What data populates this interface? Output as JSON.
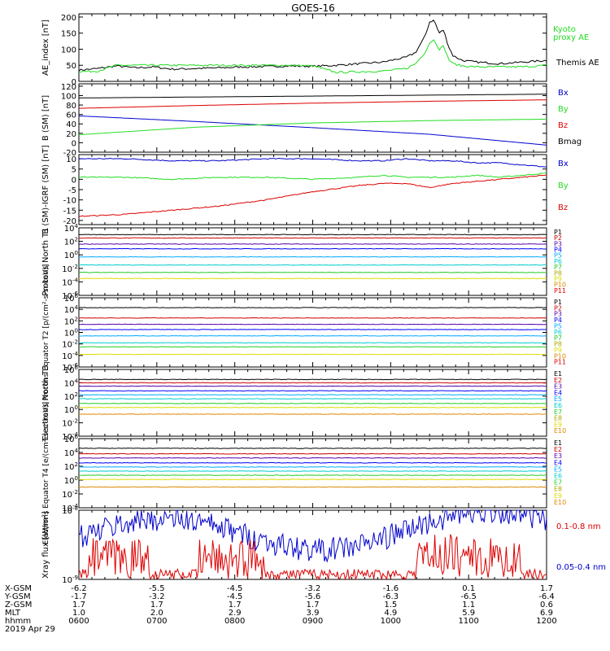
{
  "title": "GOES-16",
  "date": "2019 Apr 29",
  "colors": {
    "black": "#000000",
    "green": "#22dd22",
    "blue": "#0000cc",
    "red": "#dd0000",
    "p_series": [
      "#000000",
      "#cc0000",
      "#5500aa",
      "#0000ff",
      "#00aaff",
      "#00cccc",
      "#22cc22",
      "#aaaa00",
      "#dddd00",
      "#dd8800",
      "#dd0000"
    ]
  },
  "ephemeris": {
    "labels": [
      "X-GSM",
      "Y-GSM",
      "Z-GSM",
      "MLT",
      "hhmm"
    ],
    "rows": [
      [
        "-6.2",
        "-5.5",
        "-4.5",
        "-3.2",
        "-1.6",
        "0.1",
        "1.7"
      ],
      [
        "-1.7",
        "-3.2",
        "-4.5",
        "-5.6",
        "-6.3",
        "-6.5",
        "-6.4"
      ],
      [
        "1.7",
        "1.7",
        "1.7",
        "1.7",
        "1.5",
        "1.1",
        "0.6"
      ],
      [
        "1.0",
        "2.0",
        "2.9",
        "3.9",
        "4.9",
        "5.9",
        "6.9"
      ],
      [
        "0600",
        "0700",
        "0800",
        "0900",
        "1000",
        "1100",
        "1200"
      ]
    ]
  },
  "chart_data": [
    {
      "type": "line",
      "ylabel": "AE_index [nT]",
      "ylim": [
        0,
        210
      ],
      "ticks": [
        "0",
        "50",
        "100",
        "150",
        "200"
      ],
      "x": [
        0,
        0.04,
        0.08,
        0.12,
        0.16,
        0.2,
        0.25,
        0.3,
        0.35,
        0.4,
        0.45,
        0.5,
        0.55,
        0.6,
        0.65,
        0.7,
        0.72,
        0.74,
        0.75,
        0.76,
        0.77,
        0.78,
        0.79,
        0.8,
        0.82,
        0.85,
        0.9,
        0.95,
        1.0
      ],
      "series": [
        {
          "name": "Themis AE",
          "color": "black",
          "values": [
            35,
            40,
            48,
            42,
            45,
            38,
            40,
            42,
            45,
            46,
            48,
            47,
            50,
            55,
            60,
            75,
            90,
            140,
            185,
            190,
            150,
            160,
            110,
            80,
            65,
            60,
            55,
            60,
            65
          ]
        },
        {
          "name": "Kyoto proxy AE",
          "color": "green",
          "values": [
            30,
            32,
            50,
            50,
            50,
            50,
            50,
            50,
            50,
            50,
            50,
            48,
            28,
            30,
            32,
            40,
            55,
            90,
            120,
            130,
            100,
            110,
            70,
            55,
            48,
            45,
            45,
            45,
            50
          ]
        }
      ],
      "legend": [
        "Kyoto proxy AE",
        "Themis AE"
      ]
    },
    {
      "type": "line",
      "ylabel": "B (SM) [nT]",
      "ylim": [
        -20,
        125
      ],
      "ticks": [
        "-20",
        "0",
        "20",
        "40",
        "60",
        "80",
        "100",
        "120"
      ],
      "x": [
        0,
        0.25,
        0.5,
        0.75,
        1.0
      ],
      "series": [
        {
          "name": "Bx",
          "color": "blue",
          "values": [
            57,
            45,
            32,
            18,
            -5
          ]
        },
        {
          "name": "By",
          "color": "green",
          "values": [
            17,
            33,
            42,
            47,
            50
          ]
        },
        {
          "name": "Bz",
          "color": "red",
          "values": [
            73,
            79,
            84,
            88,
            91
          ]
        },
        {
          "name": "Bmag",
          "color": "black",
          "values": [
            95,
            97,
            99,
            101,
            103
          ]
        }
      ]
    },
    {
      "type": "line",
      "ylabel": "B (SM)-IGRF (SM) [nT]",
      "ylim": [
        -22,
        12
      ],
      "ticks": [
        "-20",
        "-15",
        "-10",
        "-5",
        "0",
        "5",
        "10"
      ],
      "x": [
        0,
        0.1,
        0.2,
        0.3,
        0.4,
        0.5,
        0.6,
        0.65,
        0.7,
        0.75,
        0.8,
        0.85,
        0.9,
        0.95,
        1.0
      ],
      "series": [
        {
          "name": "Bx",
          "color": "blue",
          "values": [
            10,
            10,
            9,
            9,
            10,
            10,
            9,
            9,
            10,
            9,
            9,
            8,
            8,
            7,
            6
          ]
        },
        {
          "name": "By",
          "color": "green",
          "values": [
            1,
            1,
            0,
            1,
            1,
            0,
            1,
            2,
            1,
            1,
            1,
            2,
            1,
            2,
            3
          ]
        },
        {
          "name": "Bz",
          "color": "red",
          "values": [
            -18,
            -17,
            -15,
            -13,
            -10,
            -6,
            -3,
            -2,
            -2,
            -4,
            -2,
            -1,
            0,
            1,
            2
          ]
        }
      ]
    },
    {
      "type": "line",
      "ylabel": "Protons North T1",
      "ylim": [
        -6,
        4
      ],
      "log": true,
      "ticks": [
        "10^4",
        "10^2",
        "10^0",
        "10^-2",
        "10^-4",
        "10^-6"
      ],
      "x": [
        0,
        0.5,
        1.0
      ],
      "series": [
        {
          "name": "P1",
          "color": "0",
          "values": [
            3.0,
            3.0,
            3.0
          ]
        },
        {
          "name": "P2",
          "color": "1",
          "values": [
            2.5,
            2.5,
            2.5
          ]
        },
        {
          "name": "P3",
          "color": "2",
          "values": [
            1.6,
            1.6,
            1.6
          ]
        },
        {
          "name": "P4",
          "color": "3",
          "values": [
            0.9,
            0.9,
            0.9
          ]
        },
        {
          "name": "P5",
          "color": "4",
          "values": [
            -0.3,
            -0.3,
            -0.3
          ]
        },
        {
          "name": "P6",
          "color": "5",
          "values": [
            -1.5,
            -1.5,
            -1.5
          ]
        },
        {
          "name": "P7",
          "color": "6",
          "values": [
            -2.6,
            -2.6,
            -2.6
          ]
        },
        {
          "name": "P8",
          "color": "8",
          "values": [
            -3.5,
            -3.5,
            -3.5
          ]
        }
      ],
      "legend": [
        "P1",
        "P2",
        "P3",
        "P4",
        "P5",
        "P6",
        "P7",
        "P8",
        "P9",
        "P10",
        "P11"
      ]
    },
    {
      "type": "line",
      "ylabel": "Protons Equator T2 [p/(cm²-s-sr-keV)]",
      "ylim": [
        -6,
        6
      ],
      "log": true,
      "ticks": [
        "10^6",
        "10^4",
        "10^2",
        "10^0",
        "10^-2",
        "10^-4",
        "10^-6"
      ],
      "x": [
        0,
        0.5,
        1.0
      ],
      "series": [
        {
          "name": "P1",
          "color": "0",
          "values": [
            4.3,
            4.3,
            4.3
          ]
        },
        {
          "name": "P2",
          "color": "1",
          "values": [
            2.5,
            2.5,
            2.5
          ]
        },
        {
          "name": "P3",
          "color": "2",
          "values": [
            1.4,
            1.4,
            1.4
          ]
        },
        {
          "name": "P4",
          "color": "3",
          "values": [
            0.5,
            0.5,
            0.5
          ]
        },
        {
          "name": "P5",
          "color": "4",
          "values": [
            -0.6,
            -0.6,
            -0.6
          ]
        },
        {
          "name": "P6",
          "color": "5",
          "values": [
            -1.8,
            -1.8,
            -1.8
          ]
        },
        {
          "name": "P7",
          "color": "6",
          "values": [
            -2.5,
            -2.5,
            -2.5
          ]
        },
        {
          "name": "P8",
          "color": "8",
          "values": [
            -3.8,
            -3.8,
            -3.8
          ]
        }
      ],
      "legend": [
        "P1",
        "P2",
        "P3",
        "P4",
        "P5",
        "P6",
        "P7",
        "P8",
        "P9",
        "P10",
        "P11"
      ]
    },
    {
      "type": "line",
      "ylabel": "Electrons North T3",
      "ylim": [
        -4,
        6
      ],
      "log": true,
      "ticks": [
        "10^6",
        "10^4",
        "10^2",
        "10^0",
        "10^-2",
        "10^-4"
      ],
      "x": [
        0,
        0.5,
        1.0
      ],
      "series": [
        {
          "name": "E1",
          "color": "0",
          "values": [
            4.5,
            4.5,
            4.5
          ]
        },
        {
          "name": "E2",
          "color": "1",
          "values": [
            4.0,
            4.0,
            4.0
          ]
        },
        {
          "name": "E3",
          "color": "2",
          "values": [
            3.5,
            3.5,
            3.5
          ]
        },
        {
          "name": "E4",
          "color": "3",
          "values": [
            2.8,
            2.8,
            2.8
          ]
        },
        {
          "name": "E5",
          "color": "4",
          "values": [
            2.2,
            2.2,
            2.2
          ]
        },
        {
          "name": "E6",
          "color": "5",
          "values": [
            1.6,
            1.6,
            1.6
          ]
        },
        {
          "name": "E7",
          "color": "6",
          "values": [
            0.9,
            0.9,
            0.9
          ]
        },
        {
          "name": "E8",
          "color": "8",
          "values": [
            0.3,
            0.3,
            0.3
          ]
        },
        {
          "name": "E9",
          "color": "9",
          "values": [
            -0.7,
            -0.7,
            -0.7
          ]
        }
      ],
      "legend": [
        "E1",
        "E2",
        "E3",
        "E4",
        "E5",
        "E6",
        "E7",
        "E8",
        "E9",
        "E10"
      ]
    },
    {
      "type": "line",
      "ylabel": "Electrons Equator T4 [e/(cm²-s-sr-keV)]",
      "ylim": [
        -4,
        6
      ],
      "log": true,
      "ticks": [
        "10^6",
        "10^4",
        "10^2",
        "10^0",
        "10^-2",
        "10^-4"
      ],
      "x": [
        0,
        0.5,
        1.0
      ],
      "series": [
        {
          "name": "E1",
          "color": "0",
          "values": [
            4.6,
            4.6,
            4.6
          ]
        },
        {
          "name": "E2",
          "color": "1",
          "values": [
            3.8,
            3.8,
            3.8
          ]
        },
        {
          "name": "E3",
          "color": "2",
          "values": [
            3.2,
            3.2,
            3.2
          ]
        },
        {
          "name": "E4",
          "color": "3",
          "values": [
            2.5,
            2.5,
            2.5
          ]
        },
        {
          "name": "E5",
          "color": "4",
          "values": [
            1.9,
            1.9,
            1.9
          ]
        },
        {
          "name": "E6",
          "color": "5",
          "values": [
            1.3,
            1.3,
            1.3
          ]
        },
        {
          "name": "E7",
          "color": "6",
          "values": [
            0.7,
            0.7,
            0.7
          ]
        },
        {
          "name": "E8",
          "color": "8",
          "values": [
            0.1,
            0.1,
            0.1
          ]
        },
        {
          "name": "E9",
          "color": "9",
          "values": [
            -1.0,
            -1.0,
            -1.0
          ]
        }
      ],
      "legend": [
        "E1",
        "E2",
        "E3",
        "E4",
        "E5",
        "E6",
        "E7",
        "E8",
        "E9",
        "E10"
      ]
    },
    {
      "type": "line",
      "ylabel": "Xray flux [W/m²]",
      "ylim": [
        -9,
        -8
      ],
      "log": true,
      "ticks": [
        "10^-8",
        "10^-9"
      ],
      "series": [
        {
          "name": "0.1-0.8 nm",
          "color": "red"
        },
        {
          "name": "0.05-0.4 nm",
          "color": "blue"
        }
      ],
      "legend": [
        "0.1-0.8 nm",
        "0.05-0.4 nm"
      ]
    }
  ]
}
